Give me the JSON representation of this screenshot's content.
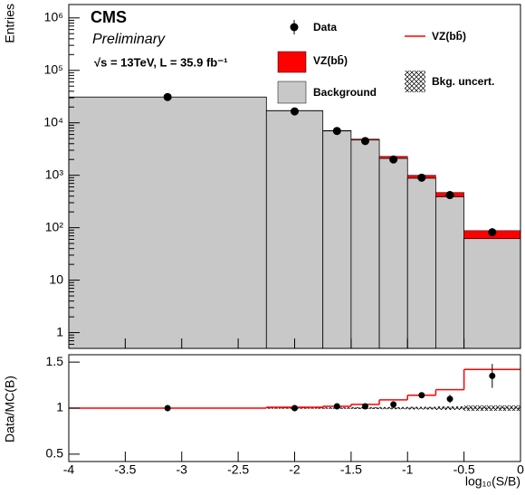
{
  "chart_data": [
    {
      "type": "histogram",
      "title": "CMS",
      "subtitle": "Preliminary",
      "annotation": "√s =  13TeV, L = 35.9 fb⁻¹",
      "y_label": "Entries",
      "bins": [
        -4,
        -2.25,
        -1.75,
        -1.5,
        -1.25,
        -1,
        -0.75,
        -0.5,
        0
      ],
      "xlim": [
        -4,
        0
      ],
      "ylim": [
        0.5,
        1800000
      ],
      "log_y": true,
      "yticks": [
        1,
        10,
        {
          "value": 100,
          "label": "10²"
        },
        {
          "value": 1000,
          "label": "10³"
        },
        {
          "value": 10000,
          "label": "10⁴"
        },
        {
          "value": 100000,
          "label": "10⁵"
        },
        {
          "value": 1000000,
          "label": "10⁶"
        }
      ],
      "series": [
        {
          "name": "Data",
          "color": "#000000",
          "values": [
            31000,
            16500,
            7000,
            4500,
            2000,
            900,
            420,
            82
          ],
          "errors": [
            180,
            130,
            85,
            70,
            45,
            30,
            20,
            9
          ]
        },
        {
          "name": "VZ(bb̄)",
          "color": "#ff0000",
          "stacked": true,
          "values": [
            30,
            170,
            140,
            190,
            190,
            120,
            80,
            26
          ]
        },
        {
          "name": "Background",
          "color": "#c8c8c8",
          "values": [
            31000,
            17000,
            7000,
            4700,
            2100,
            880,
            390,
            62
          ]
        }
      ]
    },
    {
      "type": "ratio",
      "y_label": "Data/MC(B)",
      "x_label": "log₁₀(S/B)",
      "xlim": [
        -4,
        0
      ],
      "xticks": [
        -4,
        -3.5,
        -3,
        -2.5,
        -2,
        -1.5,
        -1,
        -0.5,
        0
      ],
      "ylim": [
        0.42,
        1.58
      ],
      "yticks": [
        0.5,
        1,
        1.5
      ],
      "series": [
        {
          "color": "#000000",
          "values": [
            1.0,
            1.0,
            1.02,
            1.02,
            1.04,
            1.14,
            1.1,
            1.35
          ],
          "errors": [
            0.006,
            0.008,
            0.012,
            0.015,
            0.02,
            0.03,
            0.045,
            0.13
          ]
        },
        {
          "name": "VZ(bb̄)",
          "color": "#ff0000",
          "values": [
            1.0,
            1.01,
            1.02,
            1.04,
            1.09,
            1.14,
            1.2,
            1.42
          ]
        },
        {
          "name": "Bkg. uncert.",
          "values": [
            0.005,
            0.006,
            0.008,
            0.01,
            0.012,
            0.015,
            0.02,
            0.03
          ]
        }
      ]
    }
  ]
}
